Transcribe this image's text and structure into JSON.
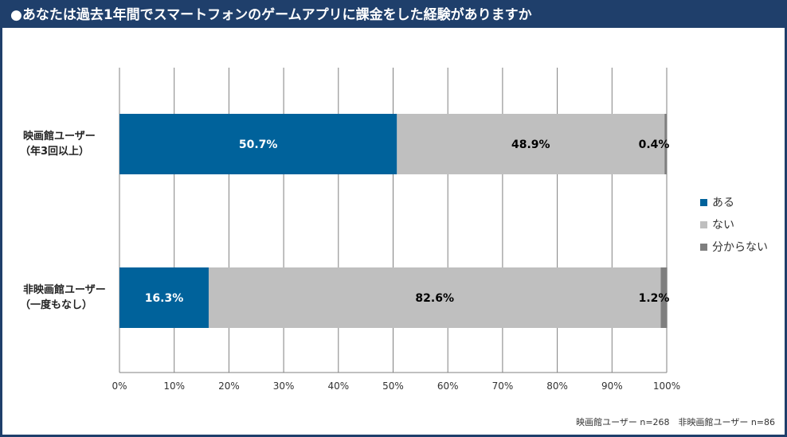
{
  "title": "●あなたは過去1年間でスマートフォンのゲームアプリに課金をした経験がありますか",
  "note": "映画館ユーザー n=268　非映画館ユーザー n=86",
  "colors": {
    "yes": "#00629b",
    "no": "#bfbfbf",
    "unknown": "#7f7f7f",
    "grid": "#808080"
  },
  "chart_data": {
    "type": "bar",
    "orientation": "horizontal",
    "stacked": true,
    "categories": [
      [
        "映画館ユーザー",
        "（年3回以上）"
      ],
      [
        "非映画館ユーザー",
        "（一度もなし）"
      ]
    ],
    "series": [
      {
        "name": "ある",
        "values": [
          50.7,
          16.3
        ],
        "labels": [
          "50.7%",
          "16.3%"
        ],
        "color": "#00629b",
        "label_color": "#ffffff"
      },
      {
        "name": "ない",
        "values": [
          48.9,
          82.6
        ],
        "labels": [
          "48.9%",
          "82.6%"
        ],
        "color": "#bfbfbf",
        "label_color": "#000000"
      },
      {
        "name": "分からない",
        "values": [
          0.4,
          1.2
        ],
        "labels": [
          "0.4%",
          "1.2%"
        ],
        "color": "#7f7f7f",
        "label_color": "#000000"
      }
    ],
    "xlim": [
      0,
      100
    ],
    "xticks": [
      "0%",
      "10%",
      "20%",
      "30%",
      "40%",
      "50%",
      "60%",
      "70%",
      "80%",
      "90%",
      "100%"
    ],
    "grid": true,
    "legend_position": "right"
  }
}
